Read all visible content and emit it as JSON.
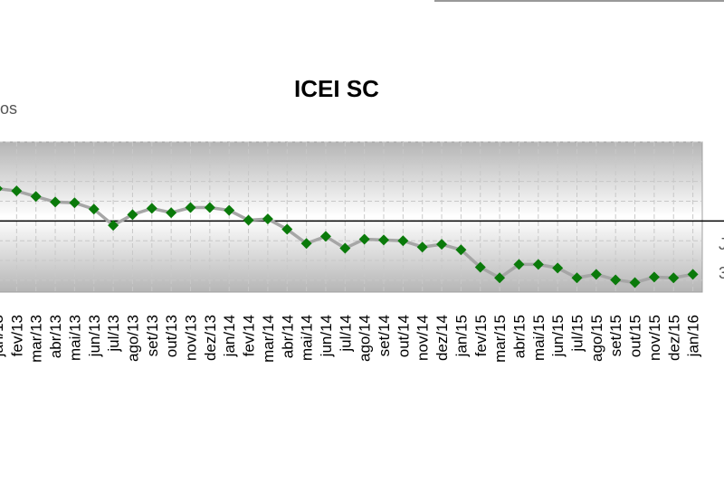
{
  "chart_data": {
    "type": "line",
    "title": "ICEI SC",
    "annotations": [
      "os",
      "J",
      "3"
    ],
    "categories": [
      "jan/13",
      "fev/13",
      "mar/13",
      "abr/13",
      "mai/13",
      "jun/13",
      "jul/13",
      "ago/13",
      "set/13",
      "out/13",
      "nov/13",
      "dez/13",
      "jan/14",
      "fev/14",
      "mar/14",
      "abr/14",
      "mai/14",
      "jun/14",
      "jul/14",
      "ago/14",
      "set/14",
      "out/14",
      "nov/14",
      "dez/14",
      "jan/15",
      "fev/15",
      "mar/15",
      "abr/15",
      "mai/15",
      "jun/15",
      "jul/15",
      "ago/15",
      "set/15",
      "out/15",
      "nov/15",
      "dez/15",
      "jan/16"
    ],
    "series": [
      {
        "name": "ICEI SC",
        "color": "#0a7a0a",
        "line_color": "#a6a6a6",
        "values": [
          58.2,
          57.6,
          56.2,
          54.8,
          54.6,
          53.0,
          48.9,
          51.6,
          53.2,
          52.1,
          53.4,
          53.4,
          52.7,
          50.2,
          50.5,
          47.9,
          44.3,
          46.1,
          43.1,
          45.4,
          45.2,
          45.0,
          43.4,
          44.1,
          42.7,
          38.3,
          35.6,
          39.0,
          39.0,
          38.1,
          35.6,
          36.5,
          35.1,
          34.4,
          35.8,
          35.6,
          36.5
        ]
      }
    ],
    "ylim": [
      32,
      70
    ],
    "yticks": [
      35,
      40,
      45,
      50,
      55,
      60,
      65,
      70
    ],
    "reference_line": 50,
    "grid": true
  }
}
